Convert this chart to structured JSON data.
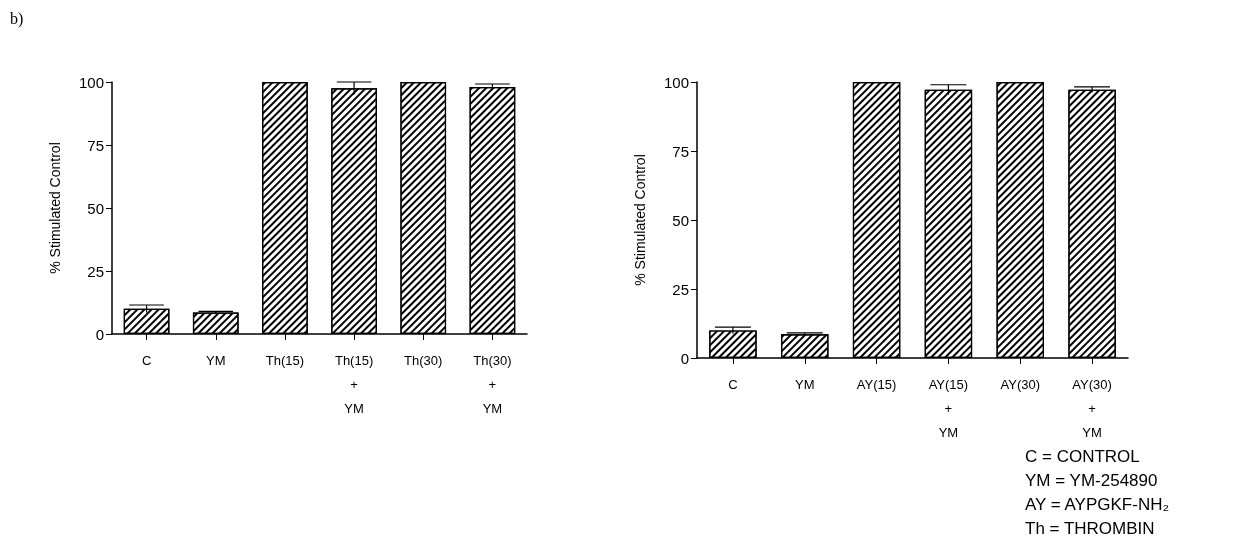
{
  "chart_data": [
    {
      "type": "bar",
      "ylabel": "% Stimulated Control",
      "annotations": [
        "b)"
      ],
      "categories": [
        "C",
        "YM",
        "Th(15)",
        "Th(15)\n+\nYM",
        "Th(30)",
        "Th(30)\n+\nYM"
      ],
      "values": [
        10,
        8.5,
        100,
        97.5,
        100,
        98
      ],
      "errors": [
        1.5,
        0.5,
        null,
        2.5,
        null,
        1.2
      ],
      "color": "#ffffff",
      "ylim": [
        0,
        100
      ],
      "yticks": [
        0,
        25,
        50,
        75,
        100
      ],
      "grid": false
    },
    {
      "type": "bar",
      "ylabel": "% Stimulated Control",
      "annotations": [
        "C = CONTROL",
        "YM = YM-254890",
        "AY = AYPGKF-NH₂",
        "Th = THROMBIN"
      ],
      "categories": [
        "C",
        "YM",
        "AY(15)",
        "AY(15)\n+\nYM",
        "AY(30)",
        "AY(30)\n+\nYM"
      ],
      "values": [
        10,
        8.6,
        100,
        97.2,
        100,
        97.2
      ],
      "errors": [
        1.2,
        0.5,
        null,
        1.8,
        null,
        1.0
      ],
      "color": "#ffffff",
      "ylim": [
        0,
        100
      ],
      "yticks": [
        0,
        25,
        50,
        75,
        100
      ],
      "grid": false
    }
  ]
}
